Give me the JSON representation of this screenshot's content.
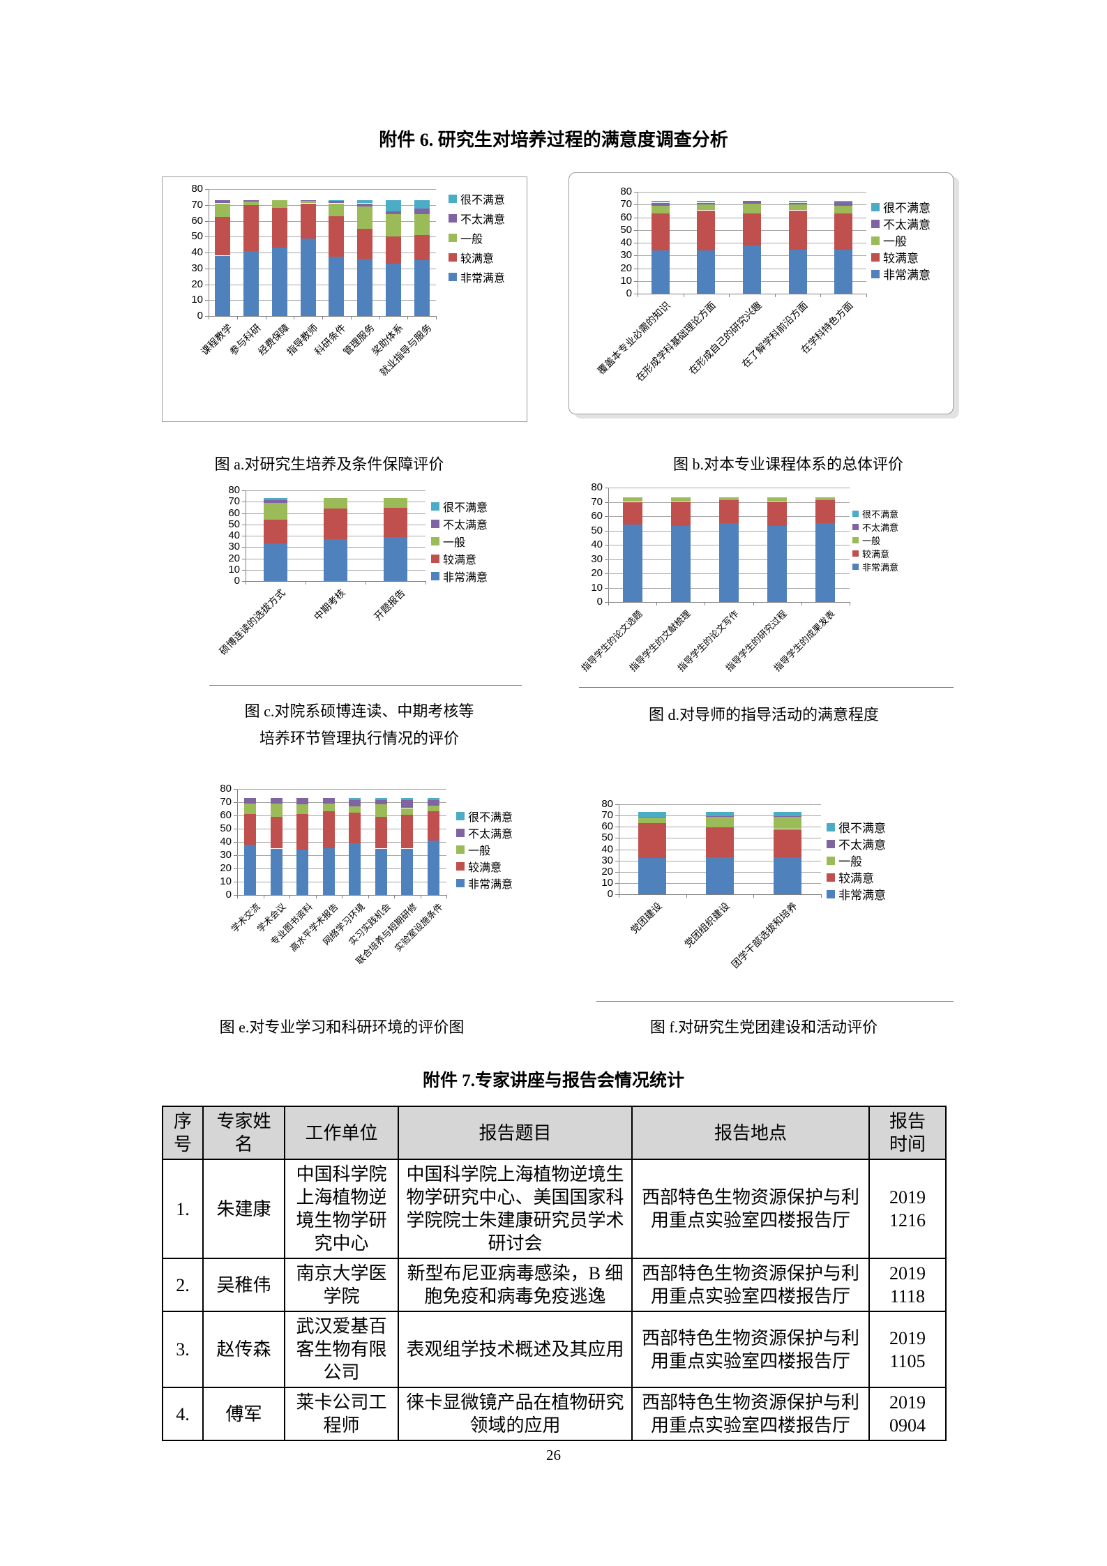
{
  "page": {
    "number": "26"
  },
  "appendix6": {
    "title": "附件 6. 研究生对培养过程的满意度调查分析"
  },
  "appendix7": {
    "title": "附件 7.专家讲座与报告会情况统计"
  },
  "series_colors": {
    "非常满意": "#4F81BD",
    "较满意": "#C0504D",
    "一般": "#9BBB59",
    "不太满意": "#8064A2",
    "很不满意": "#4BACC6"
  },
  "chart_data": [
    {
      "id": "a",
      "type": "bar",
      "stacked": true,
      "caption": "图 a.对研究生培养及条件保障评价",
      "ylim": [
        0,
        80
      ],
      "ytick_step": 10,
      "grid": true,
      "legend_position": "right",
      "legend_order_top_down": [
        "很不满意",
        "不太满意",
        "一般",
        "较满意",
        "非常满意"
      ],
      "categories": [
        "课程教学",
        "参与科研",
        "经费保障",
        "指导教师",
        "科研条件",
        "管理服务",
        "奖助体系",
        "就业指导与服务"
      ],
      "series": [
        {
          "name": "非常满意",
          "values": [
            38,
            41,
            43,
            49,
            37.5,
            36,
            33,
            35
          ]
        },
        {
          "name": "较满意",
          "values": [
            24.5,
            29,
            25,
            22,
            25.5,
            19,
            17,
            16
          ]
        },
        {
          "name": "一般",
          "values": [
            8.5,
            2,
            5,
            1.5,
            8,
            14,
            14,
            13
          ]
        },
        {
          "name": "不太满意",
          "values": [
            2,
            1,
            0,
            0.5,
            1.5,
            2,
            2,
            3.5
          ]
        },
        {
          "name": "很不满意",
          "values": [
            0,
            0,
            0,
            0,
            0.5,
            2,
            7,
            5.5
          ]
        }
      ]
    },
    {
      "id": "b",
      "type": "bar",
      "stacked": true,
      "caption": "图 b.对本专业课程体系的总体评价",
      "ylim": [
        0,
        80
      ],
      "ytick_step": 10,
      "grid": true,
      "legend_position": "right",
      "legend_order_top_down": [
        "很不满意",
        "不太满意",
        "一般",
        "较满意",
        "非常满意"
      ],
      "categories": [
        "覆盖本专业必需的知识",
        "在形成学科基础理论方面",
        "在形成自己的研究兴趣",
        "在了解学科前沿方面",
        "在学科特色方面"
      ],
      "series": [
        {
          "name": "非常满意",
          "values": [
            34,
            34,
            38,
            34.5,
            34.5
          ]
        },
        {
          "name": "较满意",
          "values": [
            29,
            31.5,
            25,
            31,
            28.5
          ]
        },
        {
          "name": "一般",
          "values": [
            6,
            4.5,
            7.5,
            4.5,
            6
          ]
        },
        {
          "name": "不太满意",
          "values": [
            2.5,
            1.5,
            2.5,
            1.5,
            3
          ]
        },
        {
          "name": "很不满意",
          "values": [
            1.5,
            1.5,
            0,
            1.5,
            1
          ]
        }
      ]
    },
    {
      "id": "c",
      "type": "bar",
      "stacked": true,
      "caption": "图 c.对院系硕博连读、中期考核等\n培养环节管理执行情况的评价",
      "ylim": [
        0,
        80
      ],
      "ytick_step": 10,
      "grid": true,
      "legend_position": "right",
      "legend_order_top_down": [
        "很不满意",
        "不太满意",
        "一般",
        "较满意",
        "非常满意"
      ],
      "categories": [
        "硕博连读的选拔方式",
        "中期考核",
        "开题报告"
      ],
      "series": [
        {
          "name": "非常满意",
          "values": [
            33,
            37,
            39
          ]
        },
        {
          "name": "较满意",
          "values": [
            21,
            27,
            25.5
          ]
        },
        {
          "name": "一般",
          "values": [
            15,
            9,
            8.5
          ]
        },
        {
          "name": "不太满意",
          "values": [
            2.5,
            0,
            0
          ]
        },
        {
          "name": "很不满意",
          "values": [
            1.5,
            0,
            0
          ]
        }
      ]
    },
    {
      "id": "d",
      "type": "bar",
      "stacked": true,
      "caption": "图 d.对导师的指导活动的满意程度",
      "ylim": [
        0,
        80
      ],
      "ytick_step": 10,
      "grid": true,
      "legend_position": "right",
      "legend_order_top_down": [
        "很不满意",
        "不太满意",
        "一般",
        "较满意",
        "非常满意"
      ],
      "categories": [
        "指导学生的论文选题",
        "指导学生的文献梳理",
        "指导学生的论文写作",
        "指导学生的研究过程",
        "指导学生的成果发表"
      ],
      "series": [
        {
          "name": "非常满意",
          "values": [
            54,
            53,
            55,
            53,
            55
          ]
        },
        {
          "name": "较满意",
          "values": [
            16,
            17.5,
            16,
            17.5,
            16
          ]
        },
        {
          "name": "一般",
          "values": [
            3,
            2.5,
            2,
            2.5,
            2
          ]
        },
        {
          "name": "不太满意",
          "values": [
            0,
            0,
            0,
            0,
            0
          ]
        },
        {
          "name": "很不满意",
          "values": [
            0,
            0,
            0,
            0,
            0
          ]
        }
      ]
    },
    {
      "id": "e",
      "type": "bar",
      "stacked": true,
      "caption": "图 e.对专业学习和科研环境的评价图",
      "ylim": [
        0,
        80
      ],
      "ytick_step": 10,
      "grid": true,
      "legend_position": "right",
      "legend_order_top_down": [
        "很不满意",
        "不太满意",
        "一般",
        "较满意",
        "非常满意"
      ],
      "categories": [
        "学术交流",
        "学术会议",
        "专业图书资料",
        "高水平学术报告",
        "网络学习环境",
        "实习实践机会",
        "联合培养与短期研修",
        "实验室设施条件"
      ],
      "series": [
        {
          "name": "非常满意",
          "values": [
            38,
            35,
            34,
            35.5,
            39,
            35,
            35,
            41
          ]
        },
        {
          "name": "较满意",
          "values": [
            23,
            24,
            27,
            27.5,
            23,
            24,
            25.5,
            22
          ]
        },
        {
          "name": "一般",
          "values": [
            8,
            10,
            7.5,
            6,
            5,
            9.5,
            5,
            4.5
          ]
        },
        {
          "name": "不太满意",
          "values": [
            4,
            4,
            4.5,
            4,
            4.5,
            3,
            6,
            4
          ]
        },
        {
          "name": "很不满意",
          "values": [
            0,
            0,
            0,
            0,
            1.5,
            1.5,
            1.5,
            1.5
          ]
        }
      ]
    },
    {
      "id": "f",
      "type": "bar",
      "stacked": true,
      "caption": "图 f.对研究生党团建设和活动评价",
      "ylim": [
        0,
        80
      ],
      "ytick_step": 10,
      "grid": true,
      "legend_position": "right",
      "legend_order_top_down": [
        "很不满意",
        "不太满意",
        "一般",
        "较满意",
        "非常满意"
      ],
      "categories": [
        "党团建设",
        "党团组织建设",
        "团学干部选拔和培养"
      ],
      "series": [
        {
          "name": "非常满意",
          "values": [
            32,
            33,
            33
          ]
        },
        {
          "name": "较满意",
          "values": [
            31,
            26.5,
            25
          ]
        },
        {
          "name": "一般",
          "values": [
            5.5,
            9.5,
            11
          ]
        },
        {
          "name": "不太满意",
          "values": [
            0.5,
            0.5,
            0.5
          ]
        },
        {
          "name": "很不满意",
          "values": [
            4,
            3.5,
            3.5
          ]
        }
      ]
    }
  ],
  "table": {
    "headers": [
      "序号",
      "专家姓名",
      "工作单位",
      "报告题目",
      "报告地点",
      "报告时间"
    ],
    "rows": [
      {
        "no": "1.",
        "name": "朱建康",
        "org": "中国科学院上海植物逆境生物学研究中心",
        "topic": "中国科学院上海植物逆境生物学研究中心、美国国家科学院院士朱建康研究员学术研讨会",
        "place": "西部特色生物资源保护与利用重点实验室四楼报告厅",
        "time": "2019\n1216"
      },
      {
        "no": "2.",
        "name": "吴稚伟",
        "org": "南京大学医学院",
        "topic": "新型布尼亚病毒感染，B 细胞免疫和病毒免疫逃逸",
        "place": "西部特色生物资源保护与利用重点实验室四楼报告厅",
        "time": "2019\n1118"
      },
      {
        "no": "3.",
        "name": "赵传森",
        "org": "武汉爱基百客生物有限公司",
        "topic": "表观组学技术概述及其应用",
        "place": "西部特色生物资源保护与利用重点实验室四楼报告厅",
        "time": "2019\n1105"
      },
      {
        "no": "4.",
        "name": "傅军",
        "org": "莱卡公司工程师",
        "topic": "徕卡显微镜产品在植物研究领域的应用",
        "place": "西部特色生物资源保护与利用重点实验室四楼报告厅",
        "time": "2019\n0904"
      }
    ]
  }
}
